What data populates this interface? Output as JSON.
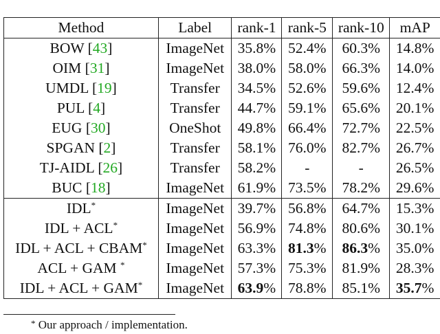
{
  "table": {
    "header": [
      "Method",
      "Label",
      "rank-1",
      "rank-5",
      "rank-10",
      "mAP"
    ],
    "groups": [
      {
        "rows": [
          {
            "cells": [
              [
                {
                  "t": "BOW ["
                },
                {
                  "t": "43",
                  "s": "cite"
                },
                {
                  "t": "]"
                }
              ],
              "ImageNet",
              "35.8%",
              "52.4%",
              "60.3%",
              "14.8%"
            ]
          },
          {
            "cells": [
              [
                {
                  "t": "OIM ["
                },
                {
                  "t": "31",
                  "s": "cite"
                },
                {
                  "t": "]"
                }
              ],
              "ImageNet",
              "38.0%",
              "58.0%",
              "66.3%",
              "14.0%"
            ]
          },
          {
            "cells": [
              [
                {
                  "t": "UMDL ["
                },
                {
                  "t": "19",
                  "s": "cite"
                },
                {
                  "t": "]"
                }
              ],
              "Transfer",
              "34.5%",
              "52.6%",
              "59.6%",
              "12.4%"
            ]
          },
          {
            "cells": [
              [
                {
                  "t": "PUL ["
                },
                {
                  "t": "4",
                  "s": "cite"
                },
                {
                  "t": "]"
                }
              ],
              "Transfer",
              "44.7%",
              "59.1%",
              "65.6%",
              "20.1%"
            ]
          },
          {
            "cells": [
              [
                {
                  "t": "EUG ["
                },
                {
                  "t": "30",
                  "s": "cite"
                },
                {
                  "t": "]"
                }
              ],
              "OneShot",
              "49.8%",
              "66.4%",
              "72.7%",
              "22.5%"
            ]
          },
          {
            "cells": [
              [
                {
                  "t": "SPGAN ["
                },
                {
                  "t": "2",
                  "s": "cite"
                },
                {
                  "t": "]"
                }
              ],
              "Transfer",
              "58.1%",
              "76.0%",
              "82.7%",
              "26.7%"
            ]
          },
          {
            "cells": [
              [
                {
                  "t": "TJ-AIDL ["
                },
                {
                  "t": "26",
                  "s": "cite"
                },
                {
                  "t": "]"
                }
              ],
              "Transfer",
              "58.2%",
              "-",
              "-",
              "26.5%"
            ]
          },
          {
            "cells": [
              [
                {
                  "t": "BUC ["
                },
                {
                  "t": "18",
                  "s": "cite"
                },
                {
                  "t": "]"
                }
              ],
              "ImageNet",
              "61.9%",
              "73.5%",
              "78.2%",
              "29.6%"
            ]
          }
        ]
      },
      {
        "rows": [
          {
            "cells": [
              [
                {
                  "t": "IDL"
                },
                {
                  "t": "*",
                  "s": "sup"
                }
              ],
              "ImageNet",
              "39.7%",
              "56.8%",
              "64.7%",
              "15.3%"
            ]
          },
          {
            "cells": [
              [
                {
                  "t": "IDL + ACL"
                },
                {
                  "t": "*",
                  "s": "sup"
                }
              ],
              "ImageNet",
              "56.9%",
              "74.8%",
              "80.6%",
              "30.1%"
            ]
          },
          {
            "cells": [
              [
                {
                  "t": "IDL + ACL + CBAM"
                },
                {
                  "t": "*",
                  "s": "sup"
                }
              ],
              "ImageNet",
              "63.3%",
              [
                {
                  "t": "81.3",
                  "s": "bold"
                },
                {
                  "t": "%"
                }
              ],
              [
                {
                  "t": "86.3",
                  "s": "bold"
                },
                {
                  "t": "%"
                }
              ],
              "35.0%"
            ]
          },
          {
            "cells": [
              [
                {
                  "t": "ACL + GAM "
                },
                {
                  "t": "*",
                  "s": "sup"
                }
              ],
              "ImageNet",
              "57.3%",
              "75.3%",
              "81.9%",
              "28.3%"
            ]
          },
          {
            "cells": [
              [
                {
                  "t": "IDL + ACL + GAM"
                },
                {
                  "t": "*",
                  "s": "sup"
                }
              ],
              "ImageNet",
              [
                {
                  "t": "63.9",
                  "s": "bold"
                },
                {
                  "t": "%"
                }
              ],
              "78.8%",
              "85.1%",
              [
                {
                  "t": "35.7",
                  "s": "bold"
                },
                {
                  "t": "%"
                }
              ]
            ]
          }
        ]
      }
    ]
  },
  "footnote": [
    {
      "t": "*",
      "s": "sup"
    },
    {
      "t": " Our approach / implementation."
    }
  ]
}
